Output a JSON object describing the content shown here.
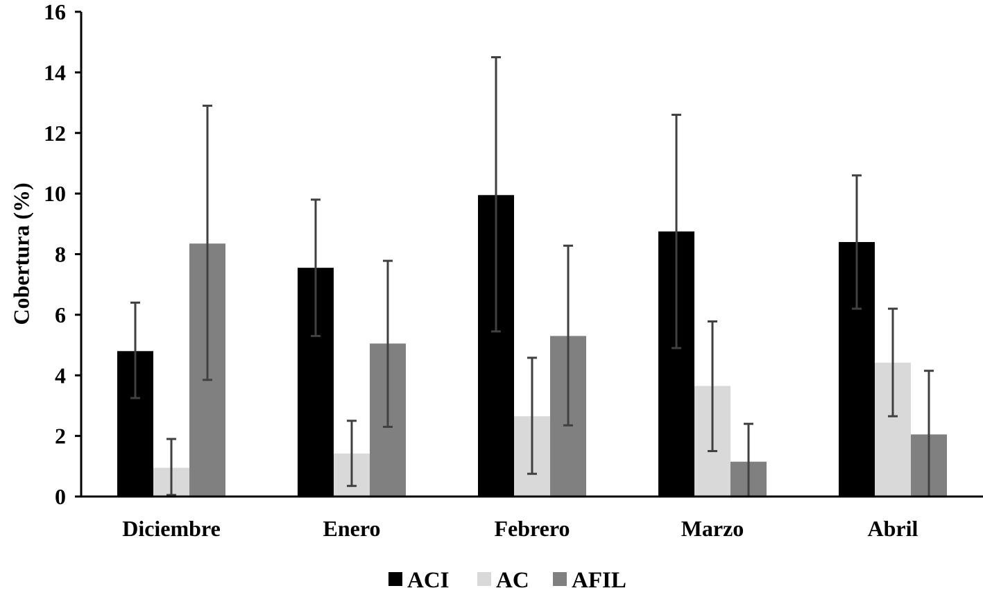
{
  "chart_data": {
    "type": "bar",
    "title": "",
    "xlabel": "",
    "ylabel": "Cobertura (%)",
    "ylim": [
      0,
      16
    ],
    "yticks": [
      0,
      2,
      4,
      6,
      8,
      10,
      12,
      14,
      16
    ],
    "ytick_labels": [
      "0",
      "2",
      "4",
      "6",
      "8",
      "10",
      "12",
      "14",
      "16"
    ],
    "categories": [
      "Diciembre",
      "Enero",
      "Febrero",
      "Marzo",
      "Abril"
    ],
    "legend_position": "bottom",
    "grid": false,
    "series": [
      {
        "name": "ACI",
        "color": "#000000",
        "values": [
          4.8,
          7.55,
          9.95,
          8.75,
          8.4
        ],
        "error_low": [
          3.25,
          5.3,
          5.45,
          4.9,
          6.2
        ],
        "error_high": [
          6.4,
          9.8,
          14.5,
          12.6,
          10.6
        ]
      },
      {
        "name": "AC",
        "color": "#d9d9d9",
        "values": [
          0.95,
          1.42,
          2.65,
          3.65,
          4.42
        ],
        "error_low": [
          0.05,
          0.35,
          0.75,
          1.5,
          2.65
        ],
        "error_high": [
          1.9,
          2.5,
          4.58,
          5.78,
          6.2
        ]
      },
      {
        "name": "AFIL",
        "color": "#808080",
        "values": [
          8.35,
          5.05,
          5.3,
          1.15,
          2.05
        ],
        "error_low": [
          3.85,
          2.3,
          2.35,
          0.0,
          0.0
        ],
        "error_high": [
          12.9,
          7.78,
          8.28,
          2.4,
          4.15
        ]
      }
    ],
    "error_bar_color": "#404040"
  }
}
